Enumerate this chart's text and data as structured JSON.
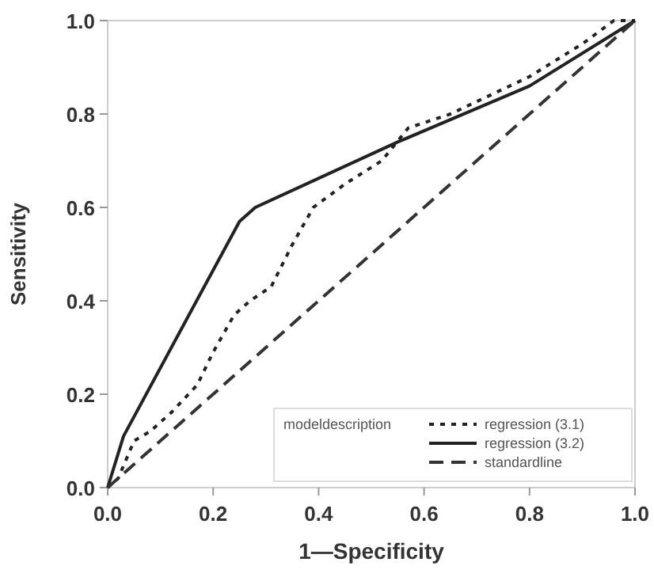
{
  "chart_data": {
    "type": "line",
    "xlabel": "1—Specificity",
    "ylabel": "Sensitivity",
    "legend_title": "modeldescription",
    "legend": "bottom right",
    "grid": false,
    "marker": "none",
    "xlim": [
      0,
      1
    ],
    "ylim": [
      0,
      1
    ],
    "xticks": [
      {
        "value": 0,
        "label": "0.0"
      },
      0.2,
      0.4,
      0.6,
      0.8,
      {
        "value": 1,
        "label": "1.0"
      }
    ],
    "yticks": [
      {
        "value": 0,
        "label": "0.0"
      },
      0.2,
      0.4,
      0.6,
      0.8,
      {
        "value": 1,
        "label": "1.0"
      }
    ],
    "series": [
      {
        "name": "regression (3.1)",
        "color": "#222222",
        "line_style": "dotted",
        "x": [
          0,
          0.02,
          0.05,
          0.08,
          0.12,
          0.17,
          0.2,
          0.24,
          0.27,
          0.31,
          0.35,
          0.39,
          0.45,
          0.52,
          0.57,
          0.65,
          0.8,
          0.9,
          0.96,
          1
        ],
        "values": [
          0,
          0.02,
          0.1,
          0.12,
          0.16,
          0.22,
          0.29,
          0.37,
          0.4,
          0.43,
          0.52,
          0.6,
          0.65,
          0.7,
          0.77,
          0.8,
          0.88,
          0.95,
          1,
          1
        ]
      },
      {
        "name": "regression (3.2)",
        "color": "#222222",
        "line_style": "solid",
        "x": [
          0,
          0.03,
          0.25,
          0.28,
          0.55,
          0.8,
          1
        ],
        "values": [
          0,
          0.11,
          0.57,
          0.6,
          0.74,
          0.86,
          1
        ]
      },
      {
        "name": "standardline",
        "color": "#333333",
        "line_style": "dashed",
        "x": [
          0,
          1
        ],
        "values": [
          0,
          1
        ]
      }
    ]
  }
}
